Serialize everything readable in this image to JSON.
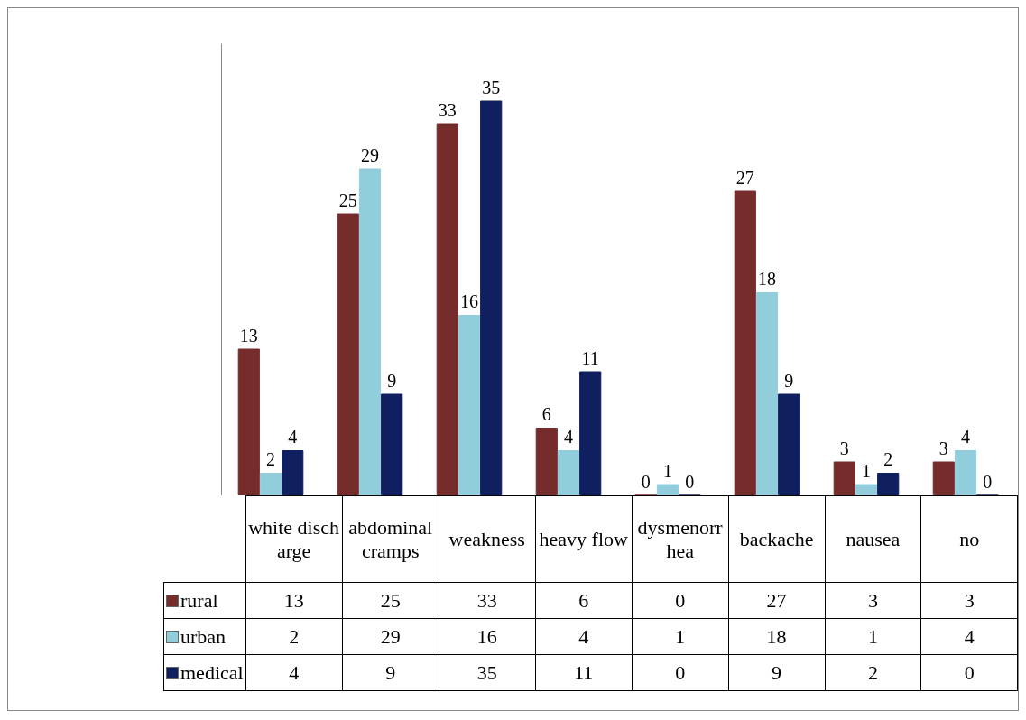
{
  "chart_data": {
    "type": "bar",
    "categories": [
      "white discharge",
      "abdominal cramps",
      "weakness",
      "heavy flow",
      "dysmenorrhea",
      "backache",
      "nausea",
      "no"
    ],
    "series": [
      {
        "name": "rural",
        "color": "#772c2c",
        "values": [
          13,
          25,
          33,
          6,
          0,
          27,
          3,
          3
        ],
        "value_labels": [
          "13",
          "25",
          "33",
          "6",
          "0",
          "27",
          "3",
          "3"
        ]
      },
      {
        "name": "urban",
        "color": "#92cddc",
        "values": [
          2,
          29,
          16,
          4,
          1,
          18,
          1,
          4
        ],
        "value_labels": [
          "2",
          "29",
          "16",
          "4",
          "1",
          "18",
          "1",
          "4"
        ]
      },
      {
        "name": "medical",
        "color": "#0f1f5f",
        "values": [
          4,
          9,
          35,
          11,
          0,
          9,
          2,
          0
        ],
        "value_labels": [
          "4",
          "9",
          "35",
          "11",
          "0",
          "9",
          "2",
          "0"
        ]
      }
    ],
    "grid": false,
    "legend": "bottom"
  }
}
